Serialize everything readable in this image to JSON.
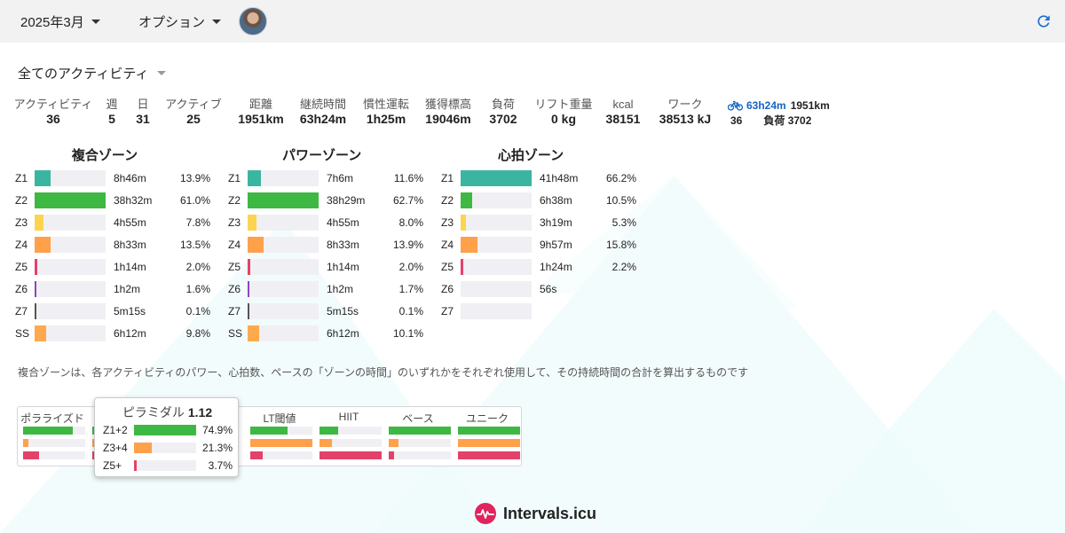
{
  "topbar": {
    "month_label": "2025年3月",
    "options_label": "オプション"
  },
  "filter": {
    "label": "全てのアクティビティ"
  },
  "stats": [
    {
      "label": "アクティビティ",
      "value": "36"
    },
    {
      "label": "週",
      "value": "5"
    },
    {
      "label": "日",
      "value": "31"
    },
    {
      "label": "アクティブ",
      "value": "25"
    },
    {
      "label": "距離",
      "value": "1951km"
    },
    {
      "label": "継続時間",
      "value": "63h24m"
    },
    {
      "label": "慣性運転",
      "value": "1h25m"
    },
    {
      "label": "獲得標高",
      "value": "19046m"
    },
    {
      "label": "負荷",
      "value": "3702"
    },
    {
      "label": "リフト重量",
      "value": "0 kg"
    },
    {
      "label": "kcal",
      "value": "38151"
    },
    {
      "label": "ワーク",
      "value": "38513 kJ"
    }
  ],
  "ride_summary": {
    "icon": "bicycle-icon",
    "duration": "63h24m",
    "distance": "1951km",
    "count": "36",
    "load_label": "負荷 3702"
  },
  "zone_panels": [
    {
      "title": "複合ゾーン",
      "rows": [
        {
          "zone": "Z1",
          "time": "8h46m",
          "pct": "13.9%",
          "fraction": 0.228,
          "color": "#3bb5a0"
        },
        {
          "zone": "Z2",
          "time": "38h32m",
          "pct": "61.0%",
          "fraction": 1.0,
          "color": "#3db843"
        },
        {
          "zone": "Z3",
          "time": "4h55m",
          "pct": "7.8%",
          "fraction": 0.128,
          "color": "#fcd450"
        },
        {
          "zone": "Z4",
          "time": "8h33m",
          "pct": "13.5%",
          "fraction": 0.221,
          "color": "#ffa04a"
        },
        {
          "zone": "Z5",
          "time": "1h14m",
          "pct": "2.0%",
          "fraction": 0.033,
          "color": "#e2426a"
        },
        {
          "zone": "Z6",
          "time": "1h2m",
          "pct": "1.6%",
          "fraction": 0.026,
          "color": "#8e44c2"
        },
        {
          "zone": "Z7",
          "time": "5m15s",
          "pct": "0.1%",
          "fraction": 0.01,
          "color": "#555555"
        },
        {
          "zone": "SS",
          "time": "6h12m",
          "pct": "9.8%",
          "fraction": 0.161,
          "color": "#ffa94d"
        }
      ]
    },
    {
      "title": "パワーゾーン",
      "rows": [
        {
          "zone": "Z1",
          "time": "7h6m",
          "pct": "11.6%",
          "fraction": 0.185,
          "color": "#3bb5a0"
        },
        {
          "zone": "Z2",
          "time": "38h29m",
          "pct": "62.7%",
          "fraction": 1.0,
          "color": "#3db843"
        },
        {
          "zone": "Z3",
          "time": "4h55m",
          "pct": "8.0%",
          "fraction": 0.128,
          "color": "#fcd450"
        },
        {
          "zone": "Z4",
          "time": "8h33m",
          "pct": "13.9%",
          "fraction": 0.222,
          "color": "#ffa04a"
        },
        {
          "zone": "Z5",
          "time": "1h14m",
          "pct": "2.0%",
          "fraction": 0.032,
          "color": "#e2426a"
        },
        {
          "zone": "Z6",
          "time": "1h2m",
          "pct": "1.7%",
          "fraction": 0.027,
          "color": "#8e44c2"
        },
        {
          "zone": "Z7",
          "time": "5m15s",
          "pct": "0.1%",
          "fraction": 0.01,
          "color": "#555555"
        },
        {
          "zone": "SS",
          "time": "6h12m",
          "pct": "10.1%",
          "fraction": 0.161,
          "color": "#ffa94d"
        }
      ]
    },
    {
      "title": "心拍ゾーン",
      "rows": [
        {
          "zone": "Z1",
          "time": "41h48m",
          "pct": "66.2%",
          "fraction": 1.0,
          "color": "#3bb5a0"
        },
        {
          "zone": "Z2",
          "time": "6h38m",
          "pct": "10.5%",
          "fraction": 0.159,
          "color": "#3db843"
        },
        {
          "zone": "Z3",
          "time": "3h19m",
          "pct": "5.3%",
          "fraction": 0.08,
          "color": "#fcd450"
        },
        {
          "zone": "Z4",
          "time": "9h57m",
          "pct": "15.8%",
          "fraction": 0.238,
          "color": "#ffa04a"
        },
        {
          "zone": "Z5",
          "time": "1h24m",
          "pct": "2.2%",
          "fraction": 0.033,
          "color": "#e2426a"
        },
        {
          "zone": "Z6",
          "time": "56s",
          "pct": "",
          "fraction": 0,
          "color": "#8e44c2"
        },
        {
          "zone": "Z7",
          "time": "",
          "pct": "",
          "fraction": 0,
          "color": "#555555"
        }
      ]
    }
  ],
  "note": "複合ゾーンは、各アクティビティのパワー、心拍数、ペースの「ゾーンの時間」のいずれかをそれぞれ使用して、その持続時間の合計を算出するものです",
  "distributions": [
    {
      "label": "ポラライズド",
      "bars": [
        0.8,
        0.08,
        0.25
      ]
    },
    {
      "label": "ピラミダル",
      "bars": [
        0.749,
        0.213,
        0.037
      ]
    },
    {
      "label": "",
      "bars": [
        0.8,
        0.15,
        0.15
      ]
    },
    {
      "label": "LT閾値",
      "bars": [
        0.6,
        1.0,
        0.2
      ]
    },
    {
      "label": "HIIT",
      "bars": [
        0.3,
        0.2,
        1.0
      ]
    },
    {
      "label": "ベース",
      "bars": [
        1.0,
        0.15,
        0.08
      ]
    },
    {
      "label": "ユニーク",
      "bars": [
        1.0,
        1.0,
        1.0
      ]
    }
  ],
  "dist_colors": [
    "#3db843",
    "#ffa04a",
    "#e2426a"
  ],
  "popover": {
    "title": "ピラミダル",
    "score": "1.12",
    "rows": [
      {
        "label": "Z1+2",
        "pct": "74.9%",
        "fraction": 0.749,
        "color": "#3db843"
      },
      {
        "label": "Z3+4",
        "pct": "21.3%",
        "fraction": 0.213,
        "color": "#ffa04a"
      },
      {
        "label": "Z5+",
        "pct": "3.7%",
        "fraction": 0.037,
        "color": "#e2426a"
      }
    ]
  },
  "footer": {
    "brand": "Intervals.icu"
  }
}
